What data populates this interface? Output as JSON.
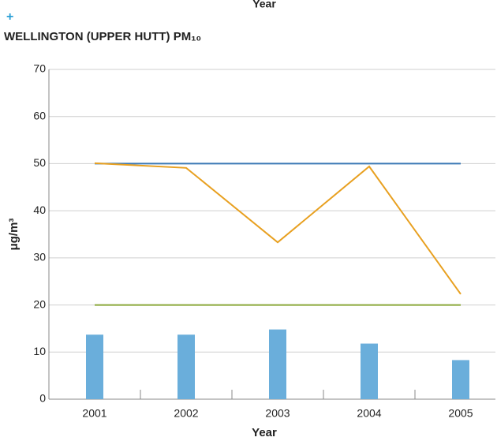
{
  "chart_data": {
    "type": "bar",
    "top_label": "Year",
    "title": "WELLINGTON (UPPER HUTT) PM₁₀",
    "x_label": "Year",
    "y_label": "μg/m³",
    "categories": [
      "2001",
      "2002",
      "2003",
      "2004",
      "2005"
    ],
    "series": [
      {
        "type": "bar",
        "color": "#6aaedb",
        "values": [
          13.7,
          13.7,
          14.8,
          11.8,
          8.3
        ]
      },
      {
        "type": "line",
        "color": "#3a78b5",
        "values": [
          50,
          50,
          50,
          50,
          50
        ]
      },
      {
        "type": "line",
        "color": "#e8a020",
        "values": [
          50.1,
          49.1,
          33.3,
          49.4,
          22.3
        ]
      },
      {
        "type": "line",
        "color": "#8aa83a",
        "values": [
          20,
          20,
          20,
          20,
          20
        ]
      }
    ],
    "ylim": [
      0,
      70
    ],
    "yticks": [
      0,
      10,
      20,
      30,
      40,
      50,
      60,
      70
    ],
    "grid": true
  }
}
